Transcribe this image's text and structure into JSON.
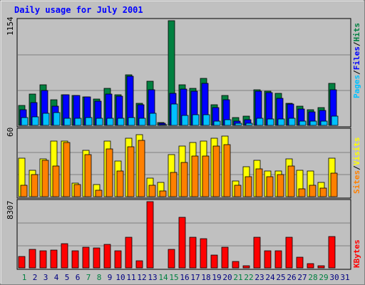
{
  "chart_data": {
    "type": "bar",
    "title": "Daily usage for July 2001",
    "categories": [
      "1",
      "2",
      "3",
      "4",
      "5",
      "6",
      "7",
      "8",
      "9",
      "10",
      "11",
      "12",
      "13",
      "14",
      "15",
      "16",
      "17",
      "18",
      "19",
      "20",
      "21",
      "22",
      "23",
      "24",
      "25",
      "26",
      "27",
      "28",
      "29",
      "30",
      "31"
    ],
    "weekend_days": [
      "1",
      "7",
      "8",
      "14",
      "15",
      "21",
      "22",
      "28",
      "29"
    ],
    "panels": [
      {
        "id": "hits_files_pages",
        "ymax_label": "1154",
        "ymax": 1154,
        "legend": [
          "Pages",
          "/",
          "Files",
          "/",
          "Hits"
        ],
        "series": [
          {
            "name": "Hits",
            "color": "#008040",
            "values": [
              220,
              345,
              445,
              280,
              335,
              330,
              315,
              290,
              410,
              340,
              560,
              240,
              485,
              30,
              1154,
              450,
              410,
              515,
              225,
              330,
              90,
              100,
              390,
              375,
              350,
              240,
              210,
              170,
              200,
              465,
              0
            ]
          },
          {
            "name": "Files",
            "color": "#0000ff",
            "values": [
              175,
              255,
              385,
              215,
              335,
              330,
              315,
              265,
              345,
              325,
              540,
              230,
              390,
              20,
              350,
              400,
              375,
              460,
              200,
              280,
              50,
              60,
              375,
              365,
              300,
              235,
              180,
              150,
              165,
              395,
              0
            ]
          },
          {
            "name": "Pages",
            "color": "#00c0ff",
            "values": [
              90,
              95,
              130,
              140,
              80,
              80,
              85,
              75,
              75,
              80,
              90,
              80,
              135,
              10,
              235,
              110,
              115,
              120,
              50,
              65,
              20,
              20,
              75,
              70,
              70,
              75,
              45,
              45,
              45,
              100,
              0
            ]
          }
        ]
      },
      {
        "id": "visits_sites",
        "ymax_label": "60",
        "ymax": 60,
        "legend": [
          "Sites",
          "/",
          "Visits"
        ],
        "series": [
          {
            "name": "Visits",
            "color": "#ffff00",
            "values": [
              35,
              24,
              34,
              50,
              50,
              12,
              42,
              11,
              50,
              32,
              53,
              56,
              17,
              13,
              38,
              46,
              49,
              50,
              53,
              55,
              14,
              27,
              33,
              23,
              23,
              34,
              24,
              23,
              13,
              35,
              0
            ]
          },
          {
            "name": "Sites",
            "color": "#ff8000",
            "values": [
              10,
              20,
              33,
              28,
              49,
              11,
              38,
              6,
              43,
              23,
              45,
              51,
              10,
              5,
              22,
              31,
              37,
              37,
              46,
              47,
              10,
              18,
              25,
              18,
              20,
              28,
              7,
              10,
              8,
              21,
              0
            ]
          }
        ]
      },
      {
        "id": "kbytes",
        "ymax_label": "8307",
        "ymax": 8307,
        "legend": [
          "KBytes"
        ],
        "series": [
          {
            "name": "KBytes",
            "color": "#ff0000",
            "values": [
              1440,
              2310,
              2150,
              2220,
              3000,
              2150,
              2560,
              2480,
              2980,
              2150,
              3800,
              870,
              8307,
              0,
              2300,
              6300,
              3880,
              3620,
              1600,
              2600,
              800,
              230,
              3810,
              2150,
              2150,
              3820,
              1380,
              500,
              230,
              3890,
              0
            ]
          }
        ]
      }
    ]
  },
  "colors": {
    "background": "#c0c0c0",
    "title": "#0000ff",
    "axis_text": "#000000",
    "weekday_label": "#000080",
    "weekend_label": "#008040",
    "grid": "#808080"
  }
}
